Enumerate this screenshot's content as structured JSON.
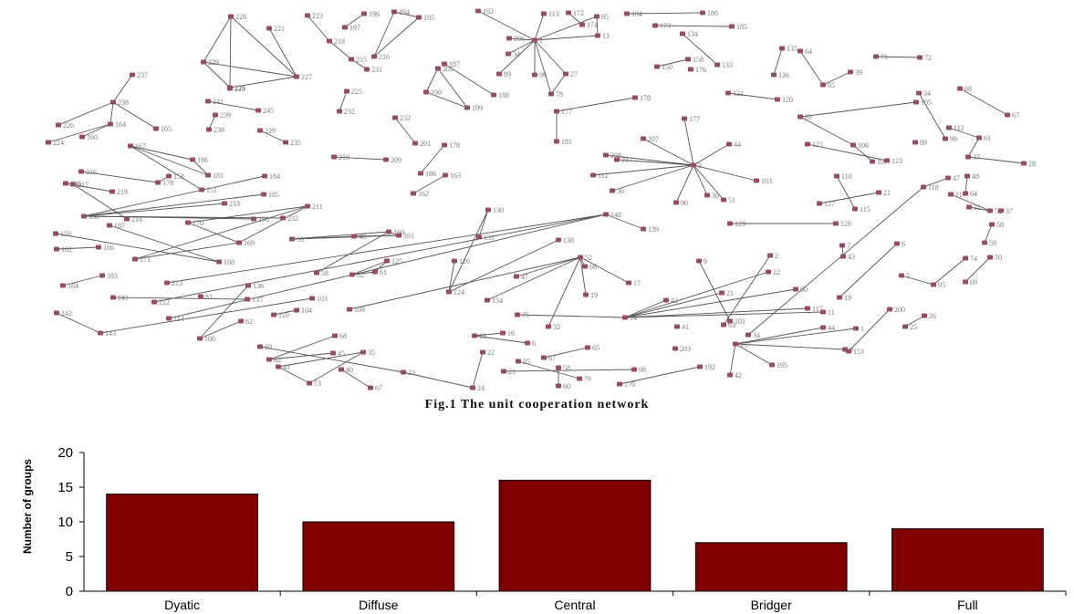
{
  "figure": {
    "caption": "Fig.1 The unit cooperation network",
    "node_color": "#9b4b5e",
    "edge_color": "#555555"
  },
  "chart_data": {
    "type": "bar",
    "categories": [
      "Dyatic",
      "Diffuse",
      "Central",
      "Bridger",
      "Full"
    ],
    "values": [
      14,
      10,
      16,
      7,
      9
    ],
    "ylabel": "Number of groups",
    "xlabel": "",
    "title": "",
    "ylim": [
      0,
      20
    ],
    "yticks": [
      0,
      5,
      10,
      15,
      20
    ],
    "grid": false,
    "bar_color": "#800000",
    "bar_edge_color": "#000000"
  }
}
